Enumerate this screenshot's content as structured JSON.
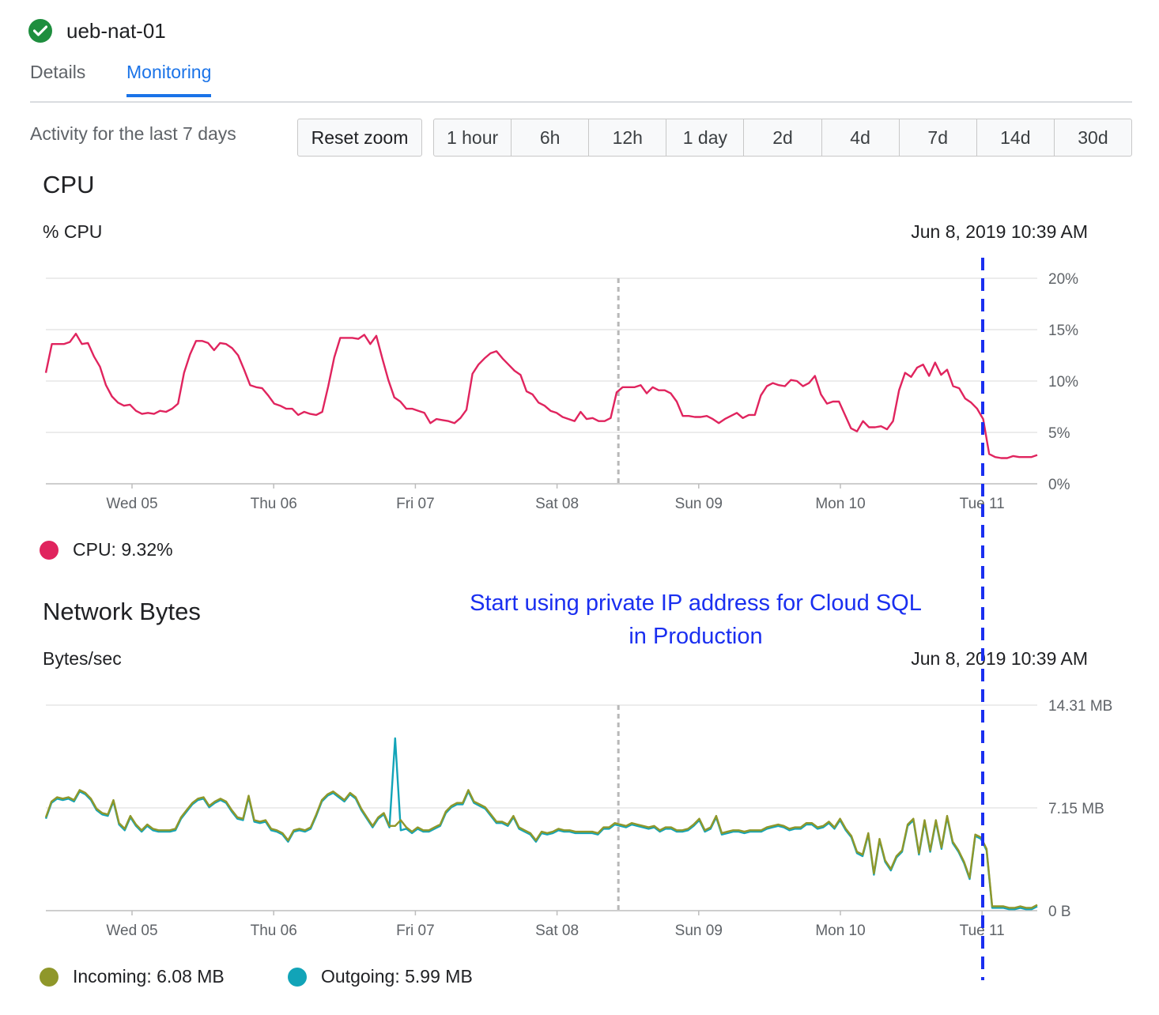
{
  "header": {
    "title": "ueb-nat-01",
    "status_icon": "check-circle-icon",
    "status_color": "#1e8e3e"
  },
  "tabs": [
    {
      "label": "Details",
      "active": false
    },
    {
      "label": "Monitoring",
      "active": true
    }
  ],
  "activity": {
    "label": "Activity for the last 7 days",
    "reset_zoom": "Reset zoom",
    "ranges": [
      "1 hour",
      "6h",
      "12h",
      "1 day",
      "2d",
      "4d",
      "7d",
      "14d",
      "30d"
    ]
  },
  "annotation": {
    "line1": "Start using private IP address for Cloud SQL",
    "line2": "in Production",
    "color": "#1a2ff0"
  },
  "colors": {
    "cpu": "#e0245e",
    "incoming": "#8f972a",
    "outgoing": "#12a4b8",
    "annotation_line": "#1a2ff0"
  },
  "chart_data": [
    {
      "type": "line",
      "title": "CPU",
      "ylabel": "% CPU",
      "hover_time": "Jun 8, 2019 10:39 AM",
      "x_tick_labels": [
        "Wed 05",
        "Thu 06",
        "Fri 07",
        "Sat 08",
        "Sun 09",
        "Mon 10",
        "Tue 11"
      ],
      "y_tick_labels": [
        "0%",
        "5%",
        "10%",
        "15%",
        "20%"
      ],
      "ylim": [
        0,
        20
      ],
      "grid": true,
      "series": [
        {
          "name": "CPU",
          "legend": "CPU: 9.32%",
          "values": [
            10.8,
            13.6,
            13.6,
            13.6,
            13.8,
            14.6,
            13.6,
            13.7,
            12.4,
            11.4,
            9.6,
            8.5,
            7.9,
            7.6,
            7.7,
            7.1,
            6.8,
            6.9,
            6.8,
            7.1,
            7.0,
            7.3,
            7.8,
            10.8,
            12.6,
            13.9,
            13.9,
            13.7,
            13.0,
            13.7,
            13.6,
            13.2,
            12.5,
            11.1,
            9.6,
            9.4,
            9.3,
            8.6,
            7.8,
            7.6,
            7.3,
            7.3,
            6.7,
            7.0,
            6.8,
            6.7,
            7.0,
            9.5,
            12.3,
            14.2,
            14.2,
            14.2,
            14.1,
            14.5,
            13.6,
            14.4,
            12.2,
            10.1,
            8.4,
            8.0,
            7.3,
            7.3,
            7.1,
            6.9,
            5.9,
            6.3,
            6.2,
            6.1,
            5.9,
            6.4,
            7.2,
            10.7,
            11.6,
            12.2,
            12.7,
            12.9,
            12.2,
            11.6,
            11.0,
            10.6,
            9.0,
            8.7,
            7.9,
            7.6,
            7.1,
            6.9,
            6.5,
            6.3,
            6.1,
            7.0,
            6.3,
            6.4,
            6.1,
            6.1,
            6.4,
            8.9,
            9.4,
            9.4,
            9.4,
            9.6,
            8.8,
            9.4,
            9.1,
            9.1,
            8.8,
            8.0,
            6.6,
            6.6,
            6.5,
            6.5,
            6.6,
            6.3,
            5.9,
            6.3,
            6.6,
            6.9,
            6.4,
            6.7,
            6.7,
            8.6,
            9.5,
            9.8,
            9.6,
            9.5,
            10.1,
            10.0,
            9.5,
            9.8,
            10.5,
            8.7,
            7.8,
            8.0,
            8.0,
            6.7,
            5.4,
            5.1,
            6.1,
            5.5,
            5.5,
            5.6,
            5.3,
            6.1,
            9.1,
            10.8,
            10.4,
            11.3,
            11.6,
            10.5,
            11.8,
            10.6,
            11.1,
            9.5,
            9.3,
            8.3,
            7.9,
            7.3,
            6.3,
            2.9,
            2.6,
            2.5,
            2.5,
            2.7,
            2.6,
            2.6,
            2.6,
            2.8
          ]
        }
      ]
    },
    {
      "type": "line",
      "title": "Network Bytes",
      "ylabel": "Bytes/sec",
      "hover_time": "Jun 8, 2019 10:39 AM",
      "x_tick_labels": [
        "Wed 05",
        "Thu 06",
        "Fri 07",
        "Sat 08",
        "Sun 09",
        "Mon 10",
        "Tue 11"
      ],
      "y_tick_labels": [
        "0 B",
        "7.15 MB",
        "14.31 MB"
      ],
      "ylim": [
        0,
        14.31
      ],
      "grid": true,
      "series": [
        {
          "name": "Incoming",
          "legend": "Incoming: 6.08 MB",
          "values": [
            6.5,
            7.6,
            7.9,
            7.8,
            7.9,
            7.7,
            8.4,
            8.2,
            7.8,
            7.1,
            6.8,
            6.7,
            7.7,
            6.1,
            5.7,
            6.6,
            6.0,
            5.6,
            6.0,
            5.7,
            5.6,
            5.6,
            5.6,
            5.7,
            6.5,
            7.0,
            7.5,
            7.8,
            7.9,
            7.3,
            7.6,
            7.8,
            7.6,
            7.0,
            6.5,
            6.4,
            8.0,
            6.3,
            6.2,
            6.3,
            5.7,
            5.6,
            5.4,
            4.9,
            5.6,
            5.7,
            5.6,
            5.8,
            6.7,
            7.7,
            8.1,
            8.3,
            8.0,
            7.7,
            8.2,
            7.9,
            7.1,
            6.5,
            5.9,
            6.5,
            6.8,
            5.9,
            5.9,
            6.3,
            5.8,
            5.5,
            5.8,
            5.6,
            5.6,
            5.8,
            6.0,
            6.9,
            7.3,
            7.5,
            7.5,
            8.4,
            7.6,
            7.4,
            7.2,
            6.7,
            6.2,
            6.2,
            6.0,
            6.6,
            5.8,
            5.6,
            5.4,
            4.9,
            5.5,
            5.4,
            5.5,
            5.7,
            5.6,
            5.6,
            5.5,
            5.5,
            5.5,
            5.5,
            5.4,
            5.8,
            5.8,
            6.1,
            6.0,
            5.9,
            6.1,
            6.0,
            5.9,
            5.8,
            5.9,
            5.6,
            5.8,
            5.8,
            5.6,
            5.6,
            5.7,
            6.0,
            6.4,
            5.6,
            5.8,
            6.6,
            5.4,
            5.5,
            5.6,
            5.6,
            5.5,
            5.6,
            5.6,
            5.6,
            5.8,
            5.9,
            6.0,
            5.9,
            5.7,
            5.8,
            5.8,
            6.1,
            6.1,
            5.8,
            5.9,
            6.2,
            5.8,
            6.4,
            5.7,
            5.2,
            4.1,
            3.9,
            5.4,
            2.6,
            5.0,
            3.5,
            2.9,
            3.8,
            4.2,
            6.0,
            6.4,
            4.0,
            6.3,
            4.2,
            6.3,
            4.4,
            6.6,
            4.8,
            4.2,
            3.4,
            2.3,
            5.3,
            5.1,
            4.3,
            0.3,
            0.3,
            0.3,
            0.2,
            0.2,
            0.3,
            0.2,
            0.2,
            0.4
          ]
        },
        {
          "name": "Outgoing",
          "legend": "Outgoing: 5.99 MB",
          "values": [
            6.4,
            7.5,
            7.8,
            7.7,
            7.8,
            7.6,
            8.3,
            8.1,
            7.7,
            7.0,
            6.7,
            6.6,
            7.6,
            6.0,
            5.6,
            6.5,
            5.9,
            5.5,
            5.9,
            5.6,
            5.5,
            5.5,
            5.5,
            5.6,
            6.4,
            6.9,
            7.4,
            7.7,
            7.8,
            7.2,
            7.5,
            7.7,
            7.5,
            6.9,
            6.4,
            6.3,
            7.9,
            6.2,
            6.1,
            6.2,
            5.6,
            5.5,
            5.3,
            4.8,
            5.5,
            5.6,
            5.5,
            5.7,
            6.6,
            7.6,
            8.0,
            8.2,
            7.9,
            7.6,
            8.1,
            7.8,
            7.0,
            6.4,
            5.8,
            6.4,
            6.7,
            5.8,
            12.0,
            5.6,
            5.7,
            5.4,
            5.7,
            5.5,
            5.5,
            5.7,
            5.9,
            6.8,
            7.2,
            7.4,
            7.4,
            8.3,
            7.5,
            7.3,
            7.1,
            6.6,
            6.1,
            6.1,
            5.9,
            6.5,
            5.7,
            5.5,
            5.3,
            4.8,
            5.4,
            5.3,
            5.4,
            5.6,
            5.5,
            5.5,
            5.4,
            5.4,
            5.4,
            5.4,
            5.3,
            5.7,
            5.7,
            6.0,
            5.9,
            5.8,
            6.0,
            5.9,
            5.8,
            5.7,
            5.8,
            5.5,
            5.7,
            5.7,
            5.5,
            5.5,
            5.6,
            5.9,
            6.3,
            5.5,
            5.7,
            6.5,
            5.3,
            5.4,
            5.5,
            5.5,
            5.4,
            5.5,
            5.5,
            5.5,
            5.7,
            5.8,
            5.9,
            5.8,
            5.6,
            5.7,
            5.7,
            6.0,
            6.0,
            5.7,
            5.8,
            6.1,
            5.7,
            6.3,
            5.6,
            5.1,
            4.0,
            3.8,
            5.3,
            2.5,
            4.9,
            3.4,
            2.8,
            3.7,
            4.1,
            5.9,
            6.3,
            3.9,
            6.2,
            4.1,
            6.2,
            4.3,
            6.5,
            4.7,
            4.1,
            3.3,
            2.2,
            5.2,
            5.0,
            4.2,
            0.2,
            0.2,
            0.2,
            0.1,
            0.1,
            0.2,
            0.1,
            0.1,
            0.3
          ]
        }
      ]
    }
  ]
}
